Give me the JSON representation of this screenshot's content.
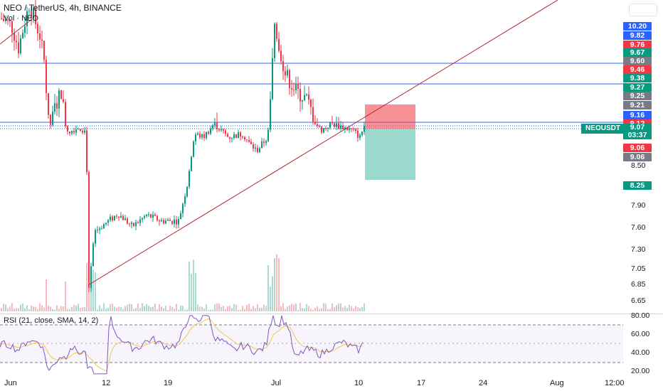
{
  "header": {
    "symbol_line": "NEO / TetherUS, 4h, BINANCE",
    "volume_line": "Vol · NEO"
  },
  "rsi": {
    "legend": "RSI (21, close, SMA, 14, 2)",
    "axis_labels": [
      "80.00",
      "60.00",
      "40.00",
      "20.00"
    ]
  },
  "price_axis": {
    "plain_ticks": [
      "8.50",
      "8.25",
      "7.90",
      "7.60",
      "7.30",
      "7.05",
      "6.85",
      "6.65"
    ],
    "tags": [
      {
        "text": "10.20",
        "color": "#2962ff"
      },
      {
        "text": "9.82",
        "color": "#2962ff"
      },
      {
        "text": "9.76",
        "color": "#f23645"
      },
      {
        "text": "9.67",
        "color": "#089981"
      },
      {
        "text": "9.60",
        "color": "#787b86"
      },
      {
        "text": "9.46",
        "color": "#f23645"
      },
      {
        "text": "9.38",
        "color": "#089981"
      },
      {
        "text": "9.27",
        "color": "#089981"
      },
      {
        "text": "9.25",
        "color": "#787b86"
      },
      {
        "text": "9.21",
        "color": "#787b86"
      },
      {
        "text": "9.16",
        "color": "#2962ff"
      },
      {
        "text": "9.12",
        "color": "#f23645"
      },
      {
        "text": "9.06",
        "color": "#f23645"
      },
      {
        "text": "9.06",
        "color": "#787b86"
      },
      {
        "text": "8.25",
        "color": "#089981"
      }
    ],
    "last_price": "9.07",
    "countdown": "03:37",
    "symbol_tag": "NEOUSDT"
  },
  "time_axis": [
    "Jun",
    "12",
    "19",
    "Jul",
    "10",
    "17",
    "24",
    "Aug",
    "12:00"
  ],
  "colors": {
    "up": "#089981",
    "down": "#f23645",
    "trendline": "#b22833",
    "hline": "#2962ff",
    "sma": "#f7c548",
    "rsi": "#7e57c2",
    "stop_zone": "#f2363f",
    "target_zone": "#22ab94"
  },
  "chart_data": {
    "type": "candlestick",
    "symbol": "NEO / TetherUS",
    "timeframe": "4h",
    "exchange": "BINANCE",
    "last": 9.07,
    "horizontal_levels": [
      9.46,
      9.27,
      9.12
    ],
    "position": {
      "entry": 9.07,
      "stop": 9.21,
      "target": 8.25
    },
    "trendlines": [
      {
        "from": [
          "Jun 10",
          6.8
        ],
        "to": [
          "Aug",
          10.4
        ]
      },
      {
        "from": [
          "Jun",
          9.75
        ],
        "to": [
          "Jun 3",
          9.9
        ]
      }
    ],
    "candles_summary": [
      {
        "date": "Jun",
        "close": 9.5
      },
      {
        "date": "Jun 5",
        "close": 9.0
      },
      {
        "date": "Jun 9",
        "close": 6.9
      },
      {
        "date": "Jun 12",
        "close": 7.6
      },
      {
        "date": "Jun 19",
        "close": 7.65
      },
      {
        "date": "Jun 21",
        "close": 9.0
      },
      {
        "date": "Jun 27",
        "close": 8.7
      },
      {
        "date": "Jul",
        "close": 9.7
      },
      {
        "date": "Jul 5",
        "close": 9.2
      },
      {
        "date": "Jul 10",
        "close": 9.07
      }
    ]
  }
}
